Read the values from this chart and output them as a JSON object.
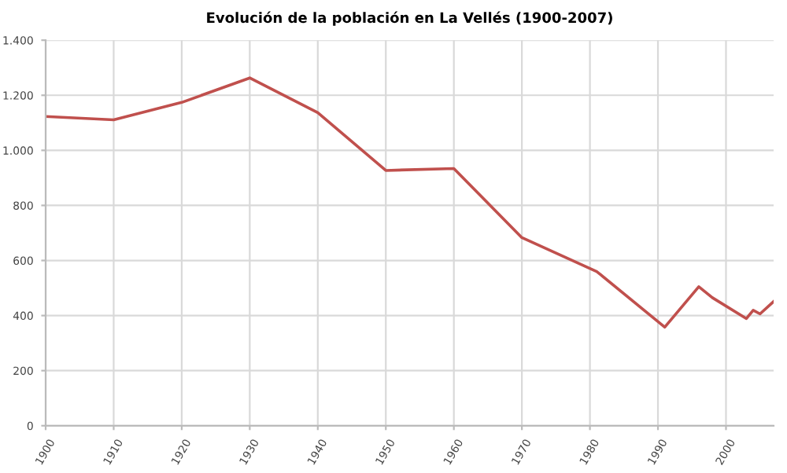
{
  "chart_data": {
    "type": "line",
    "title": "Evolución de la población en La Vellés (1900-2007)",
    "x": [
      1900,
      1910,
      1920,
      1930,
      1940,
      1950,
      1960,
      1970,
      1981,
      1991,
      1996,
      1998,
      2003,
      2004,
      2005,
      2007
    ],
    "series": [
      {
        "color": "#c0504d",
        "values": [
          1123,
          1111,
          1174,
          1263,
          1137,
          927,
          934,
          683,
          560,
          358,
          505,
          465,
          389,
          419,
          406,
          451
        ]
      }
    ],
    "xlim": [
      1900,
      2007
    ],
    "xticks": [
      1900,
      1910,
      1920,
      1930,
      1940,
      1950,
      1960,
      1970,
      1980,
      1990,
      2000
    ],
    "ylim": [
      0,
      1400
    ],
    "yticks": [
      0,
      200,
      400,
      600,
      800,
      {
        "value": 1000,
        "label": "1.000"
      },
      {
        "value": 1200,
        "label": "1.200"
      },
      {
        "value": 1400,
        "label": "1.400"
      }
    ],
    "grid": true,
    "legend": false,
    "marker": "none",
    "line_style": "solid"
  }
}
